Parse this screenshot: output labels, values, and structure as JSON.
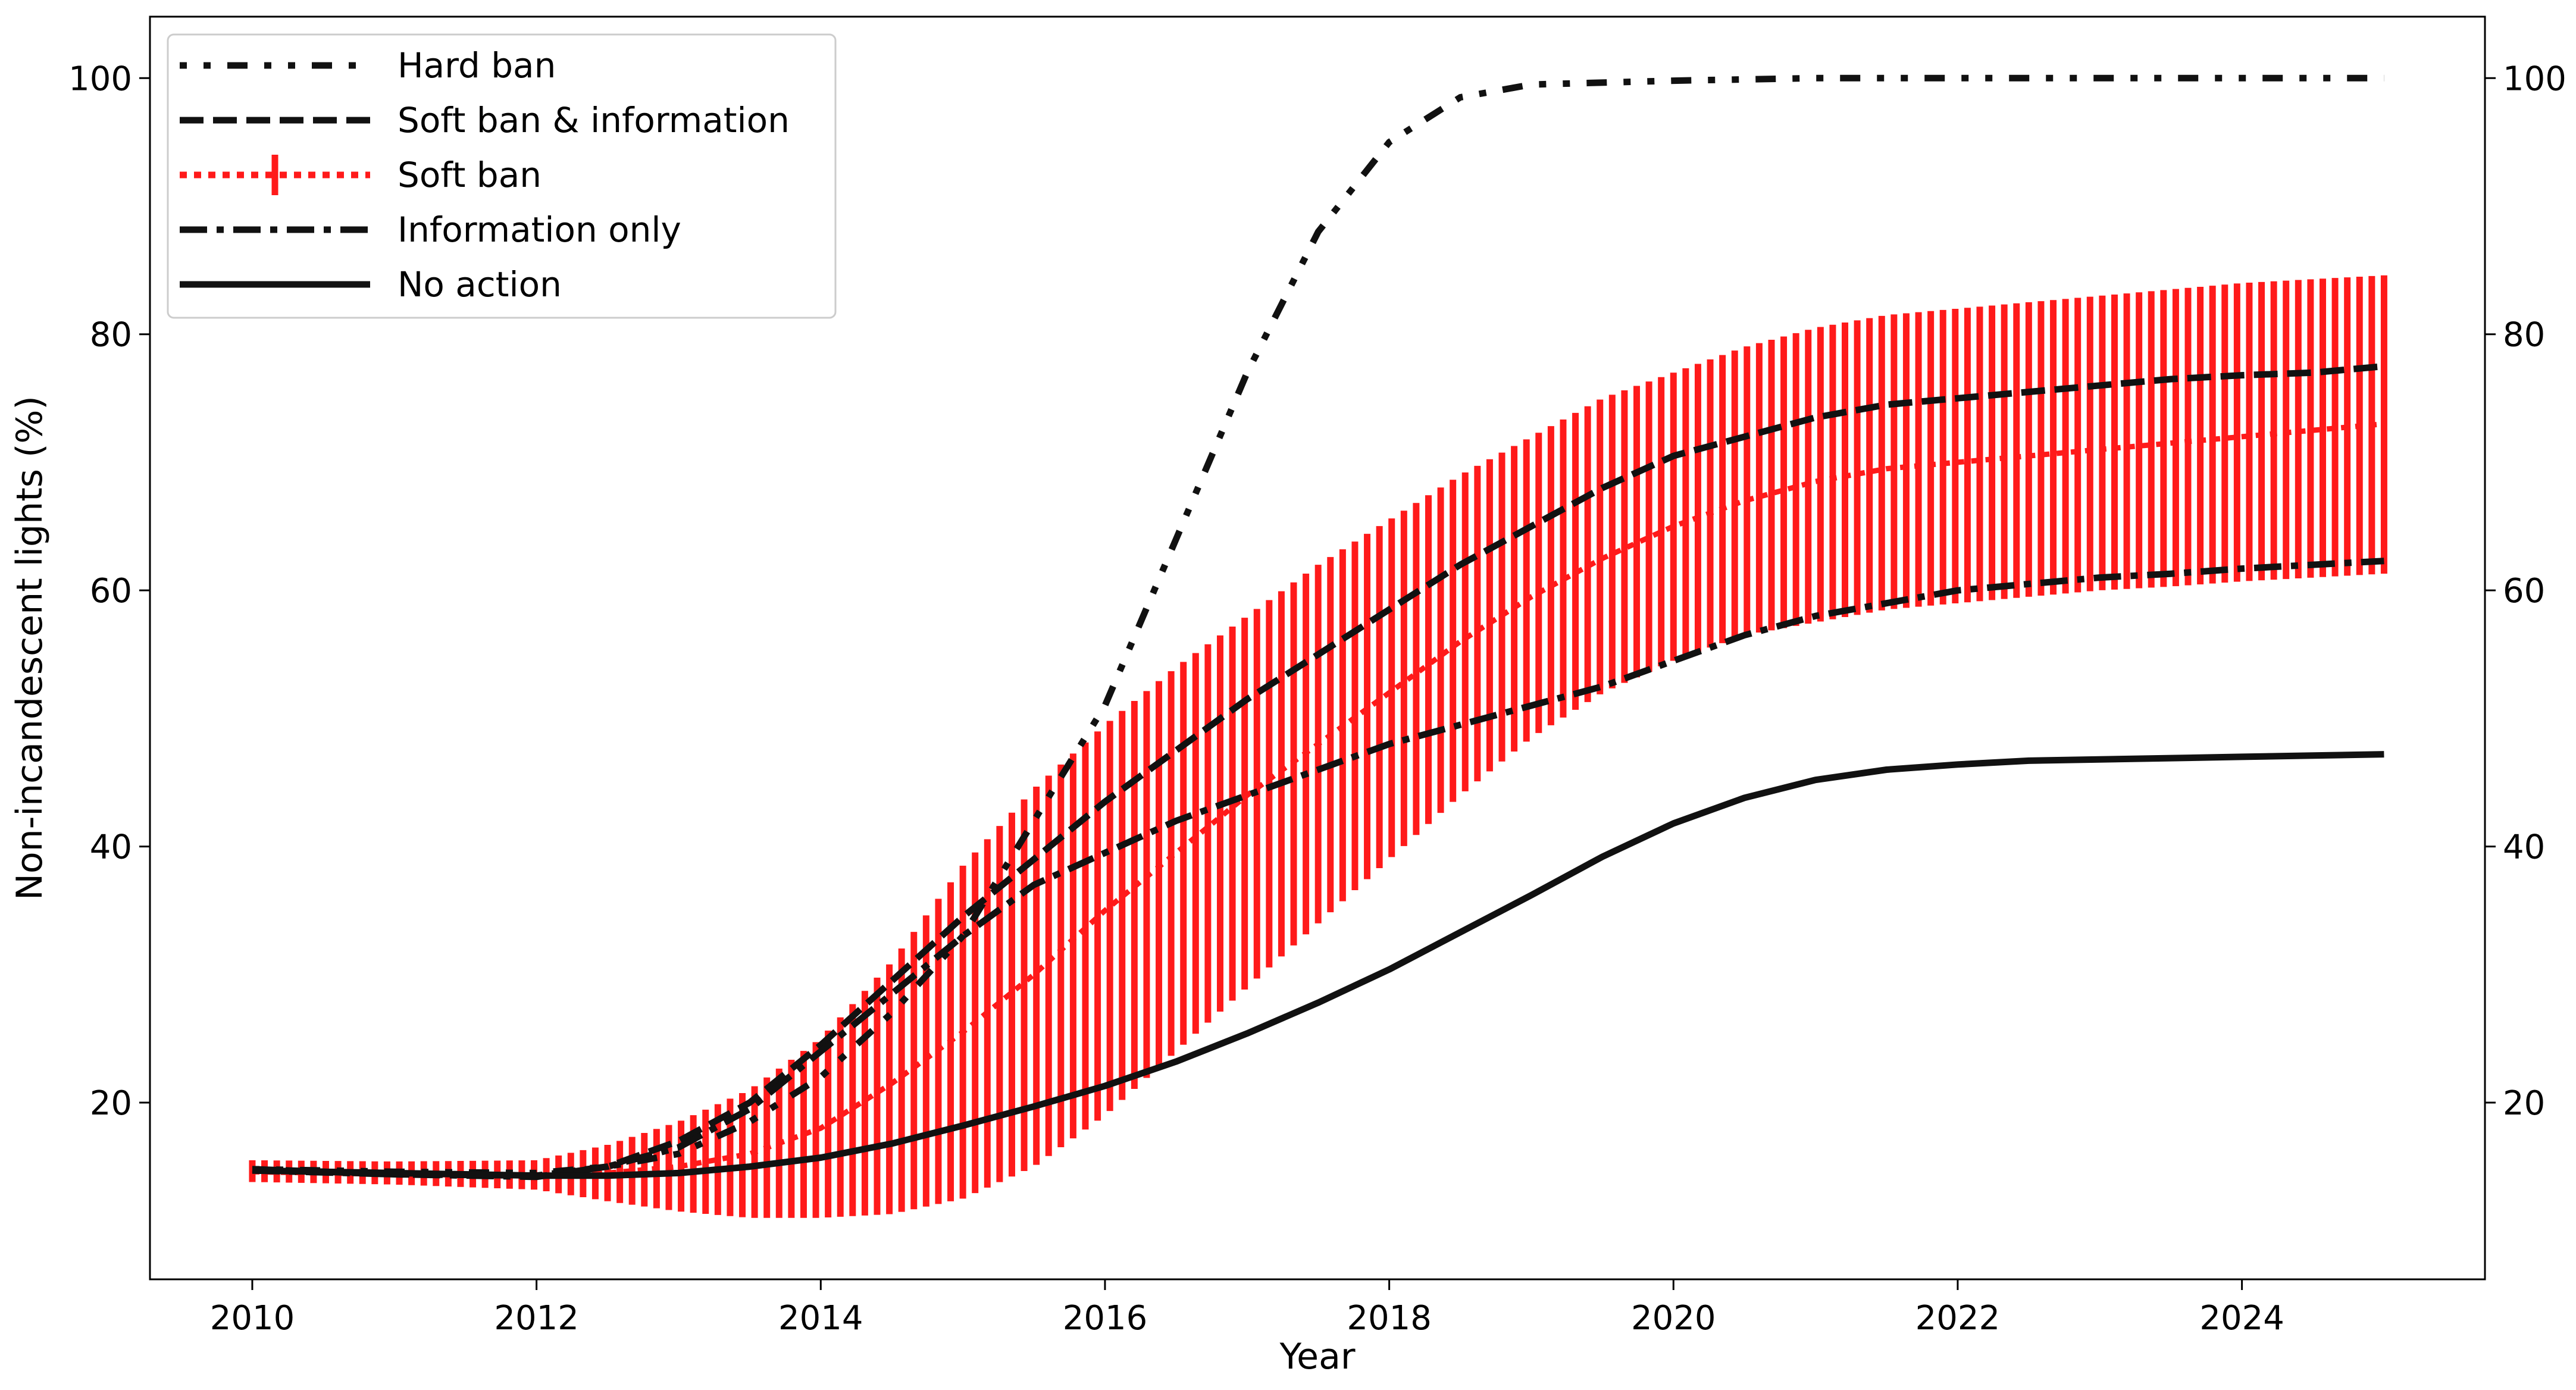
{
  "chart_data": {
    "type": "line",
    "xlabel": "Year",
    "ylabel": "Non-incandescent lights (%)",
    "xlim": [
      2009.28,
      2025.71
    ],
    "ylim": [
      6.2,
      104.8
    ],
    "x_ticks": [
      2010,
      2012,
      2014,
      2016,
      2018,
      2020,
      2022,
      2024
    ],
    "y_ticks": [
      20,
      40,
      60,
      80,
      100
    ],
    "y_ticks_right": [
      20,
      40,
      60,
      80,
      100
    ],
    "grid": false,
    "legend_position": "top-left",
    "series": [
      {
        "name": "Hard ban",
        "style": "dotted-dashed",
        "color": "#000000",
        "x": [
          2010,
          2011,
          2012,
          2012.5,
          2013,
          2013.5,
          2014,
          2014.5,
          2015,
          2015.5,
          2016,
          2016.5,
          2017,
          2017.5,
          2018,
          2018.5,
          2019,
          2020,
          2021,
          2022,
          2023,
          2024,
          2025
        ],
        "y": [
          14.8,
          14.6,
          14.5,
          15.0,
          16.0,
          18.5,
          22.0,
          27.0,
          33.0,
          42.0,
          51.0,
          64.0,
          77.0,
          88.0,
          95.0,
          98.5,
          99.5,
          99.8,
          100,
          100,
          100,
          100,
          100
        ]
      },
      {
        "name": "Soft ban & information",
        "style": "dashed",
        "color": "#000000",
        "x": [
          2010,
          2011,
          2012,
          2012.5,
          2013,
          2013.5,
          2014,
          2014.5,
          2015,
          2015.5,
          2016,
          2016.5,
          2017,
          2017.5,
          2018,
          2018.5,
          2019,
          2019.5,
          2020,
          2020.5,
          2021,
          2021.5,
          2022,
          2022.5,
          2023,
          2023.5,
          2024,
          2024.5,
          2025
        ],
        "y": [
          14.8,
          14.4,
          14.3,
          15.0,
          17.0,
          20.0,
          24.5,
          29.5,
          34.5,
          39.0,
          43.5,
          47.5,
          51.5,
          55.0,
          58.5,
          62.0,
          65.0,
          68.0,
          70.5,
          72.0,
          73.5,
          74.5,
          75.0,
          75.5,
          76.0,
          76.5,
          76.8,
          77.0,
          77.5
        ]
      },
      {
        "name": "Soft ban",
        "style": "dotted",
        "color": "#ff0000",
        "x": [
          2010,
          2011,
          2012,
          2012.5,
          2013,
          2013.5,
          2014,
          2014.5,
          2015,
          2015.5,
          2016,
          2016.5,
          2017,
          2017.5,
          2018,
          2018.5,
          2019,
          2019.5,
          2020,
          2020.5,
          2021,
          2021.5,
          2022,
          2022.5,
          2023,
          2023.5,
          2024,
          2024.5,
          2025
        ],
        "y": [
          14.6,
          14.4,
          14.3,
          14.5,
          15.0,
          16.0,
          18.0,
          21.5,
          25.5,
          30.0,
          35.0,
          39.5,
          44.0,
          48.0,
          52.0,
          56.0,
          59.5,
          62.5,
          65.0,
          67.0,
          68.5,
          69.5,
          70.0,
          70.5,
          71.0,
          71.5,
          72.0,
          72.5,
          73.0
        ],
        "y_lower": [
          13.8,
          13.6,
          13.2,
          12.3,
          11.5,
          11.0,
          11.0,
          11.3,
          12.5,
          15.0,
          19.0,
          24.0,
          29.0,
          34.0,
          39.0,
          44.0,
          48.5,
          52.0,
          54.5,
          56.5,
          57.5,
          58.5,
          59.0,
          59.5,
          60.0,
          60.3,
          60.7,
          61.0,
          61.3
        ],
        "y_upper": [
          15.5,
          15.4,
          15.5,
          16.7,
          18.5,
          21.0,
          25.0,
          31.0,
          38.5,
          44.5,
          49.5,
          54.0,
          58.0,
          62.0,
          65.5,
          69.0,
          72.0,
          75.0,
          77.0,
          79.0,
          80.5,
          81.5,
          82.0,
          82.5,
          83.0,
          83.5,
          84.0,
          84.3,
          84.6
        ]
      },
      {
        "name": "Information only",
        "style": "dash-dot",
        "color": "#000000",
        "x": [
          2010,
          2011,
          2012,
          2012.5,
          2013,
          2013.5,
          2014,
          2014.5,
          2015,
          2015.5,
          2016,
          2016.5,
          2017,
          2017.5,
          2018,
          2018.5,
          2019,
          2019.5,
          2020,
          2020.5,
          2021,
          2021.5,
          2022,
          2022.5,
          2023,
          2023.5,
          2024,
          2024.5,
          2025
        ],
        "y": [
          14.7,
          14.4,
          14.2,
          15.0,
          16.5,
          19.5,
          24.0,
          28.5,
          33.0,
          37.0,
          39.5,
          42.0,
          44.0,
          46.0,
          48.0,
          49.5,
          51.0,
          52.5,
          54.5,
          56.5,
          58.0,
          59.0,
          60.0,
          60.5,
          61.0,
          61.3,
          61.7,
          62.0,
          62.3
        ]
      },
      {
        "name": "No action",
        "style": "solid",
        "color": "#000000",
        "x": [
          2010,
          2011,
          2012,
          2012.5,
          2013,
          2013.5,
          2014,
          2014.5,
          2015,
          2015.5,
          2016,
          2016.5,
          2017,
          2017.5,
          2018,
          2018.5,
          2019,
          2019.5,
          2020,
          2020.5,
          2021,
          2021.5,
          2022,
          2022.5,
          2023,
          2023.5,
          2024,
          2024.5,
          2025
        ],
        "y": [
          14.7,
          14.5,
          14.3,
          14.3,
          14.5,
          15.0,
          15.7,
          16.8,
          18.2,
          19.7,
          21.3,
          23.2,
          25.4,
          27.8,
          30.4,
          33.3,
          36.2,
          39.2,
          41.8,
          43.8,
          45.2,
          46.0,
          46.4,
          46.7,
          46.8,
          46.9,
          47.0,
          47.1,
          47.2
        ]
      }
    ]
  }
}
